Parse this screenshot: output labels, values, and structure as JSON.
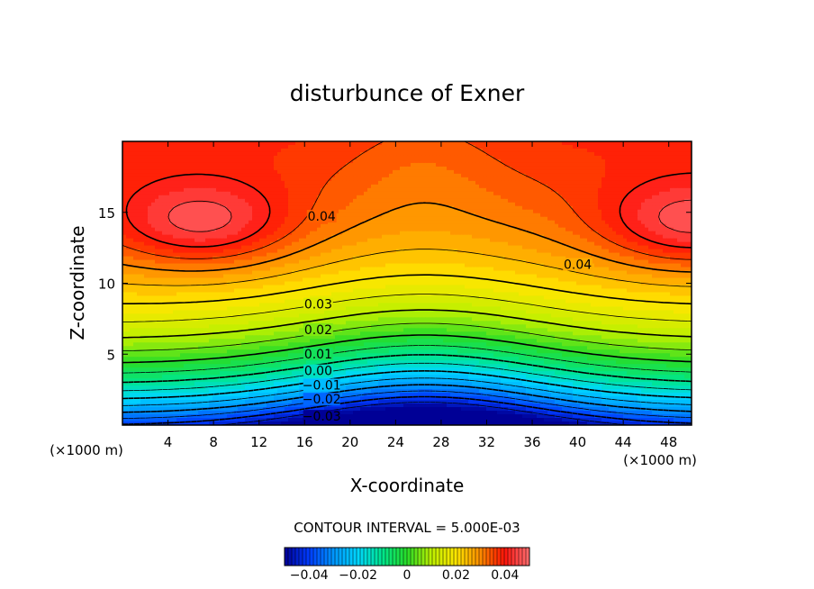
{
  "chart_data": {
    "type": "heatmap",
    "subtype": "filled-contour",
    "title": "disturbunce of Exner",
    "xlabel": "X-coordinate",
    "ylabel": "Z-coordinate",
    "x_unit": "(×1000 m)",
    "y_unit": "(×1000 m)",
    "xlim": [
      0,
      50
    ],
    "ylim": [
      0,
      20
    ],
    "x_ticks": [
      4,
      8,
      12,
      16,
      20,
      24,
      28,
      32,
      36,
      40,
      44,
      48
    ],
    "y_ticks": [
      5,
      10,
      15
    ],
    "contour_interval_text": "CONTOUR INTERVAL = 5.000E-03",
    "contour_interval": 0.005,
    "value_range": [
      -0.05,
      0.05
    ],
    "contour_labels": [
      {
        "x": 17.5,
        "z": 14.6,
        "text": "0.04"
      },
      {
        "x": 40.0,
        "z": 11.2,
        "text": "0.04"
      },
      {
        "x": 17.2,
        "z": 8.4,
        "text": "0.03"
      },
      {
        "x": 17.2,
        "z": 6.6,
        "text": "0.02"
      },
      {
        "x": 17.2,
        "z": 4.9,
        "text": "0.01"
      },
      {
        "x": 17.2,
        "z": 3.7,
        "text": "0.00"
      },
      {
        "x": 17.5,
        "z": 2.7,
        "text": "−0.01"
      },
      {
        "x": 17.5,
        "z": 1.7,
        "text": "−0.02"
      },
      {
        "x": 17.5,
        "z": 0.5,
        "text": "−0.03"
      }
    ],
    "colorbar": {
      "range": [
        -0.05,
        0.05
      ],
      "ticks": [
        -0.04,
        -0.02,
        0,
        0.02,
        0.04
      ],
      "tick_labels": [
        "−0.04",
        "−0.02",
        "0",
        "0.02",
        "0.04"
      ]
    }
  }
}
